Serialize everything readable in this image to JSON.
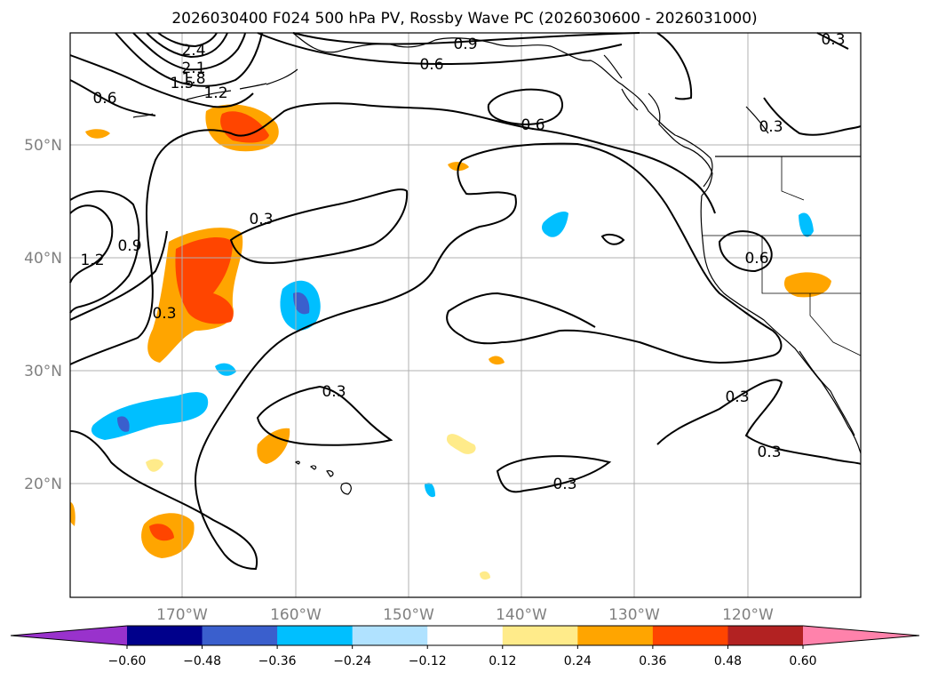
{
  "title": "2026030400 F024 500 hPa PV, Rossby Wave PC (2026030600 - 2026031000)",
  "lat_labels": [
    "50°N",
    "40°N",
    "30°N",
    "20°N"
  ],
  "lon_labels": [
    "170°W",
    "160°W",
    "150°W",
    "140°W",
    "130°W",
    "120°W"
  ],
  "colorbar": {
    "ticks": [
      "−0.60",
      "−0.48",
      "−0.36",
      "−0.24",
      "−0.12",
      "0.12",
      "0.24",
      "0.36",
      "0.48",
      "0.60"
    ],
    "colors": [
      "#9932cc",
      "#00008b",
      "#3a5fcd",
      "#00bfff",
      "#b0e2ff",
      "#ffffff",
      "#ffeb8a",
      "#ffa500",
      "#ff4500",
      "#b22222",
      "#ff82ab"
    ]
  },
  "contour_labels": [
    "2.4",
    "2.1",
    "1.8",
    "1.5",
    "1.2",
    "0.9",
    "0.6",
    "0.6",
    "0.6",
    "0.3",
    "0.3",
    "0.6",
    "1.2",
    "0.9",
    "0.3",
    "0.3",
    "0.3",
    "0.3",
    "0.3",
    "0.3"
  ]
}
